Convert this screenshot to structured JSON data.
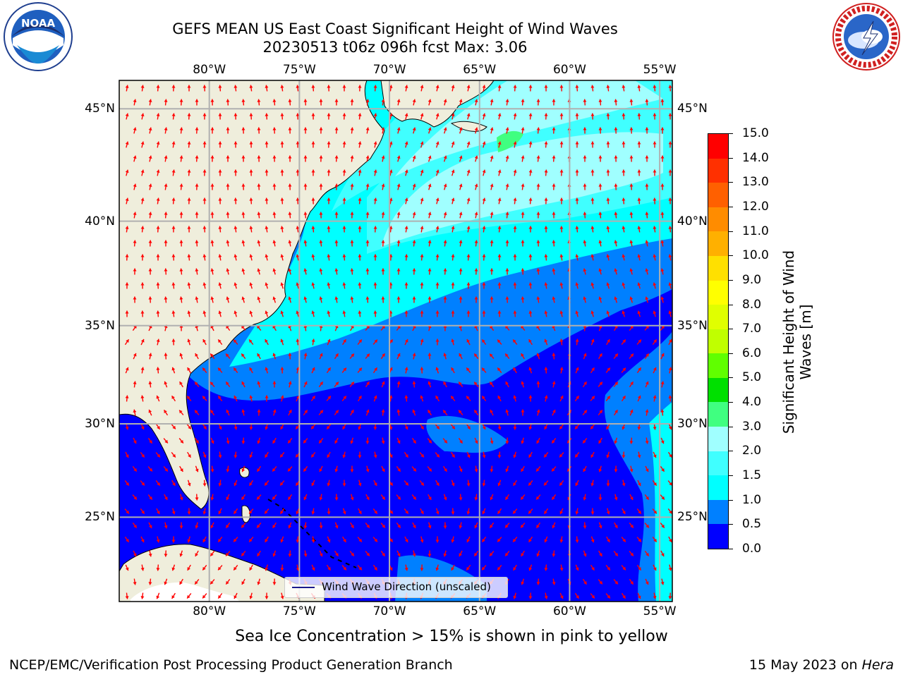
{
  "title": {
    "line1": "GEFS MEAN US East Coast Significant Height of Wind Waves",
    "line2": "20230513 t06z 096h fcst   Max: 3.06"
  },
  "logos": {
    "noaa": {
      "text": "NOAA",
      "arc_text": "NATIONAL OCEANIC AND ATMOSPHERIC ADMINISTRATION",
      "bottom_text": "U.S. DEPARTMENT OF COMMERCE"
    },
    "nws": {
      "arc_text": "NATIONAL WEATHER SERVICE"
    }
  },
  "map": {
    "lon_labels": [
      "80°W",
      "75°W",
      "70°W",
      "65°W",
      "60°W",
      "55°W"
    ],
    "lat_labels": [
      "45°N",
      "40°N",
      "35°N",
      "30°N",
      "25°N"
    ],
    "lon_range": [
      -85,
      -54.3
    ],
    "lat_range": [
      20.3,
      46.2
    ],
    "legend_label": "Wind Wave Direction (unscaled)",
    "land_color": "#efeedc",
    "arrow_color": "#ff0000",
    "grid_color": "#b0b0b0"
  },
  "colorbar": {
    "title": "Significant Height of Wind Waves [m]",
    "ticks": [
      "0.0",
      "0.5",
      "1.0",
      "1.5",
      "2.0",
      "3.0",
      "4.0",
      "5.0",
      "6.0",
      "7.0",
      "8.0",
      "9.0",
      "10.0",
      "11.0",
      "12.0",
      "13.0",
      "14.0",
      "15.0"
    ],
    "colors": [
      "#0000ff",
      "#0080ff",
      "#00ffff",
      "#40ffff",
      "#a0ffff",
      "#40ff80",
      "#00e000",
      "#60ff00",
      "#c0ff00",
      "#e0ff00",
      "#ffff00",
      "#ffe000",
      "#ffb000",
      "#ff8c00",
      "#ff6000",
      "#ff3000",
      "#ff0000"
    ]
  },
  "sea_ice_note": "Sea Ice Concentration > 15% is shown in pink to yellow",
  "footer": {
    "left": "NCEP/EMC/Verification Post Processing Product Generation Branch",
    "right_date": "15 May 2023 on",
    "right_host": "Hera"
  }
}
